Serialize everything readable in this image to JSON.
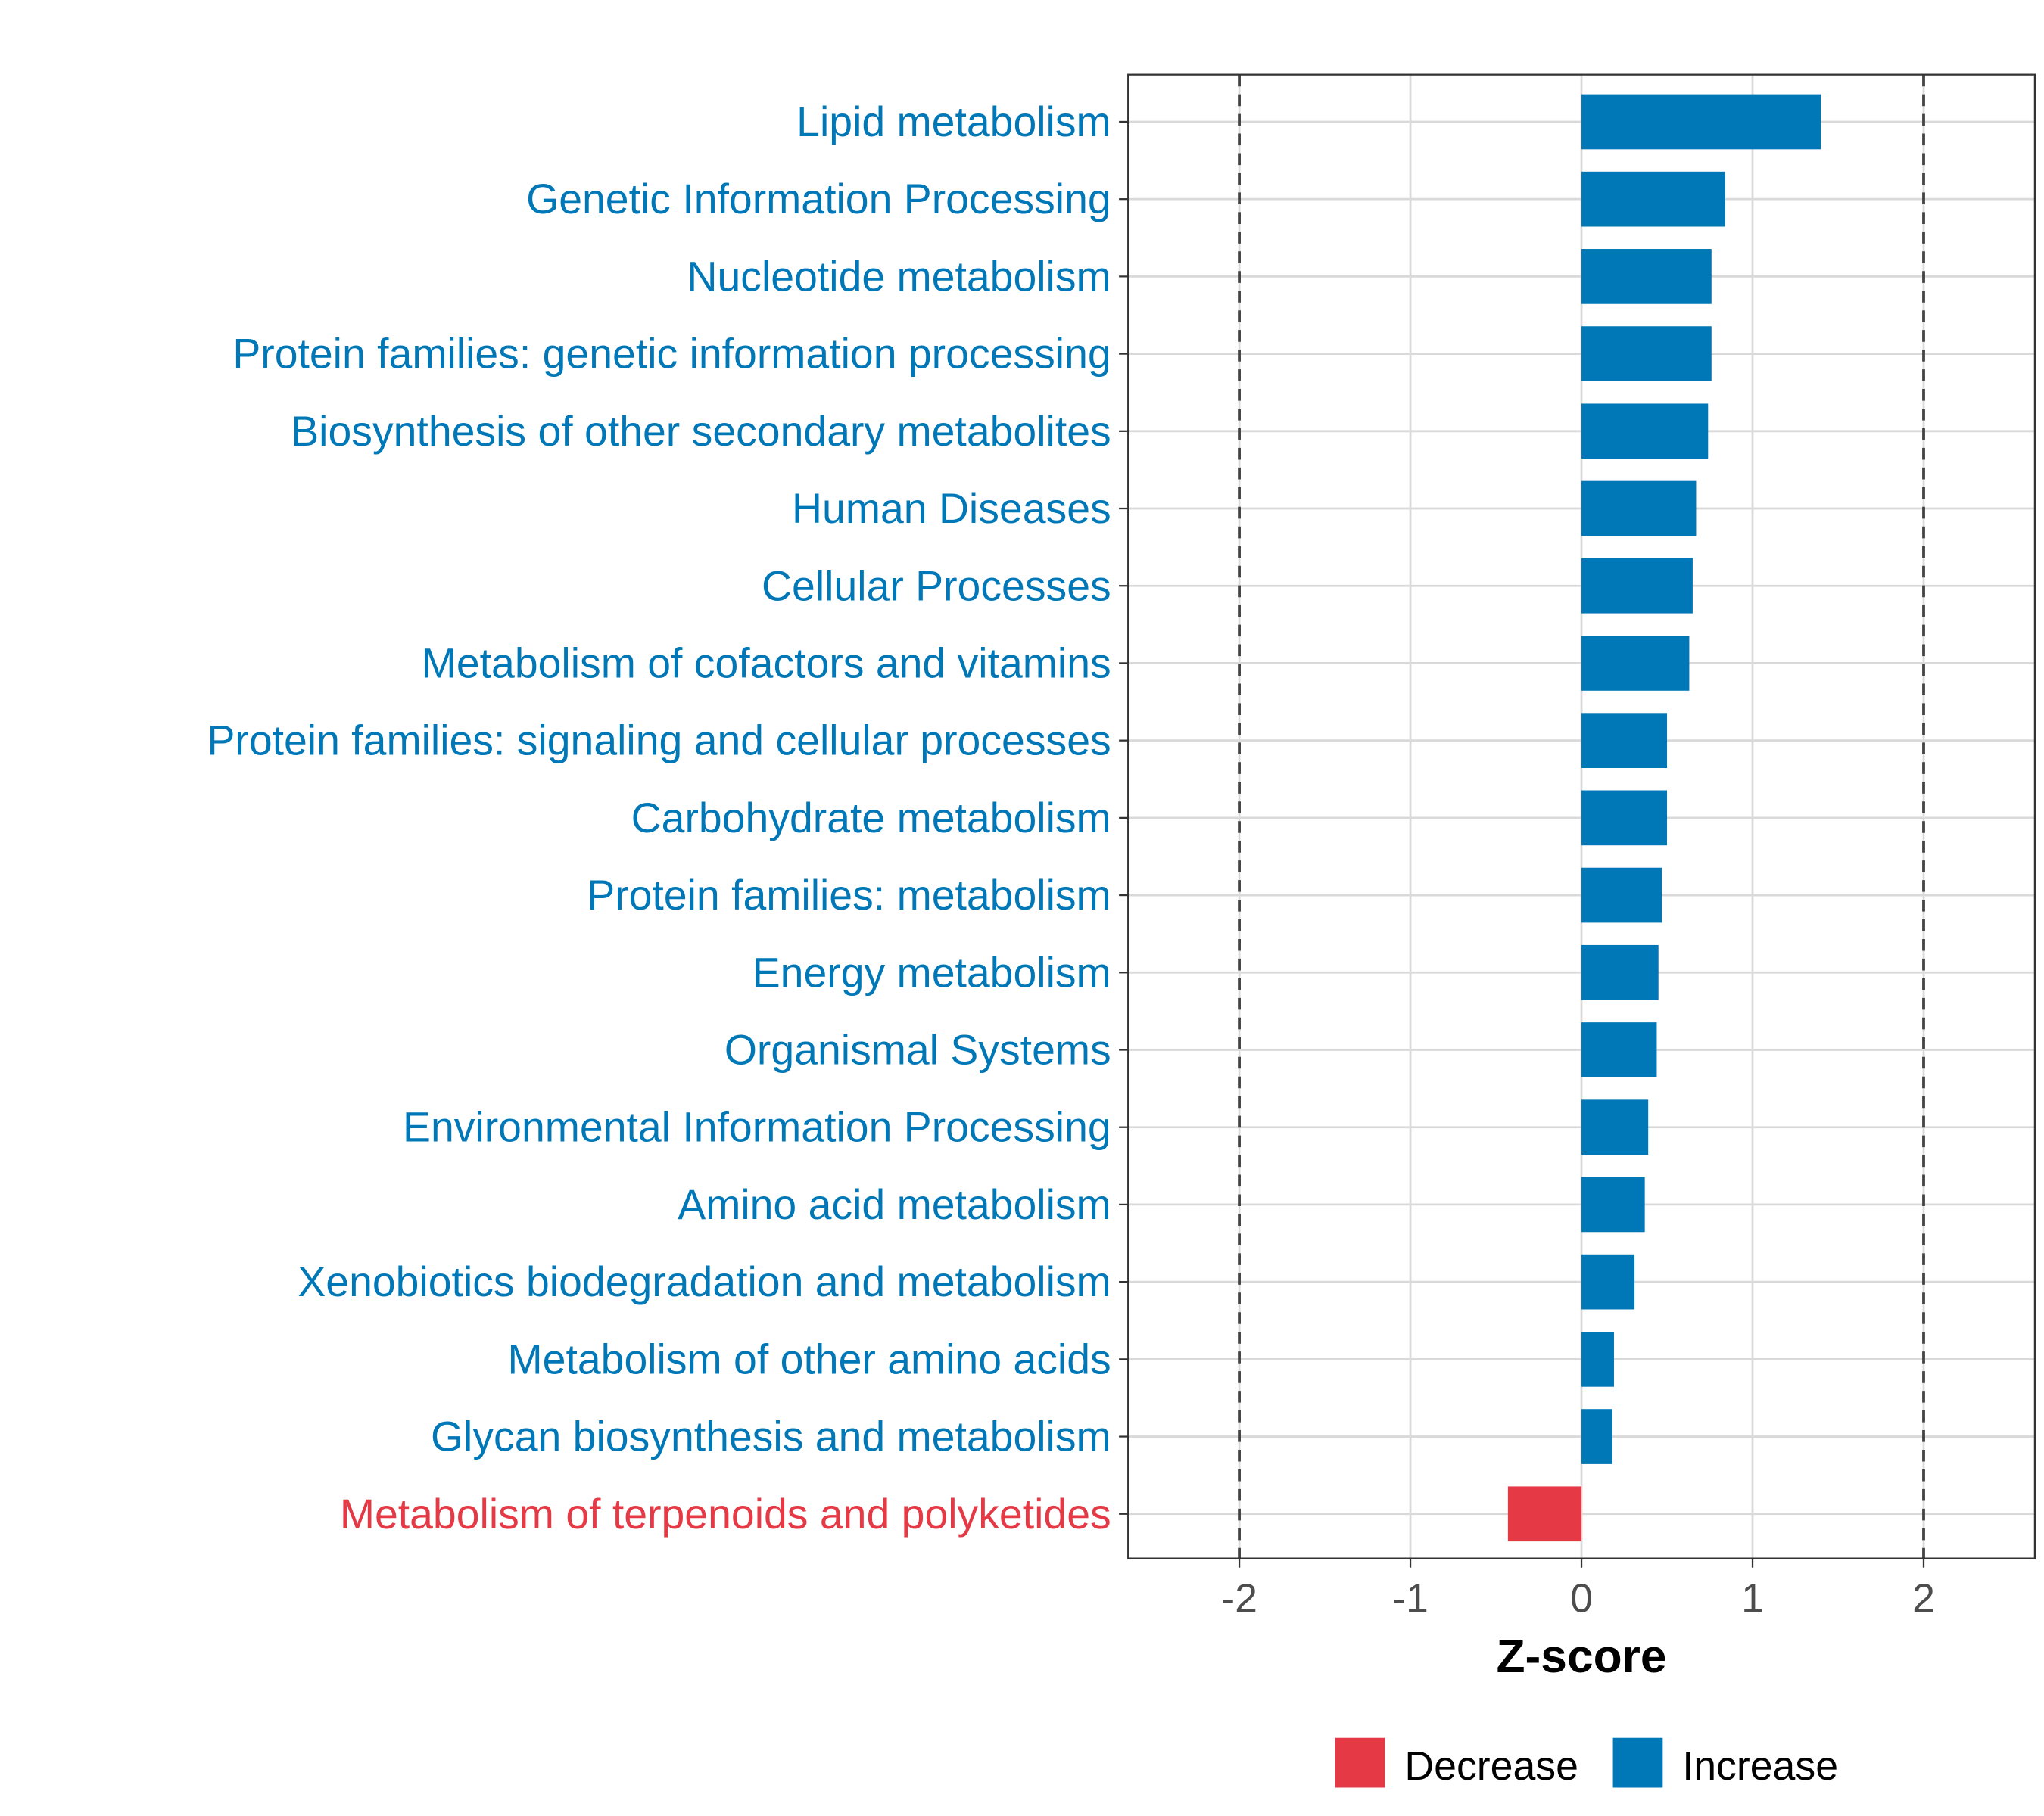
{
  "colors": {
    "increase": "#0077b6",
    "decrease": "#e63946",
    "grid": "#d9d9d9",
    "text": "#4d4d4d"
  },
  "chart_data": {
    "type": "bar",
    "orientation": "horizontal",
    "title": "",
    "xlabel": "Z-score",
    "ylabel": "",
    "xlim": [
      -2.65,
      2.65
    ],
    "xticks": [
      -2,
      -1,
      0,
      1,
      2
    ],
    "xtick_labels": [
      "-2",
      "-1",
      "0",
      "1",
      "2"
    ],
    "reference_lines": [
      -2,
      2
    ],
    "grid": true,
    "categories": [
      "Lipid metabolism",
      "Genetic Information Processing",
      "Nucleotide metabolism",
      "Protein families: genetic information processing",
      "Biosynthesis of other secondary metabolites",
      "Human Diseases",
      "Cellular Processes",
      "Metabolism of cofactors and vitamins",
      "Protein families: signaling and cellular processes",
      "Carbohydrate metabolism",
      "Protein families: metabolism",
      "Energy metabolism",
      "Organismal Systems",
      "Environmental Information Processing",
      "Amino acid metabolism",
      "Xenobiotics biodegradation and metabolism",
      "Metabolism of other amino acids",
      "Glycan biosynthesis and metabolism",
      "Metabolism of terpenoids and polyketides"
    ],
    "values": [
      1.4,
      0.84,
      0.76,
      0.76,
      0.74,
      0.67,
      0.65,
      0.63,
      0.5,
      0.5,
      0.47,
      0.45,
      0.44,
      0.39,
      0.37,
      0.31,
      0.19,
      0.18,
      -0.43
    ],
    "legend": {
      "position": "bottom",
      "entries": [
        "Decrease",
        "Increase"
      ]
    }
  }
}
